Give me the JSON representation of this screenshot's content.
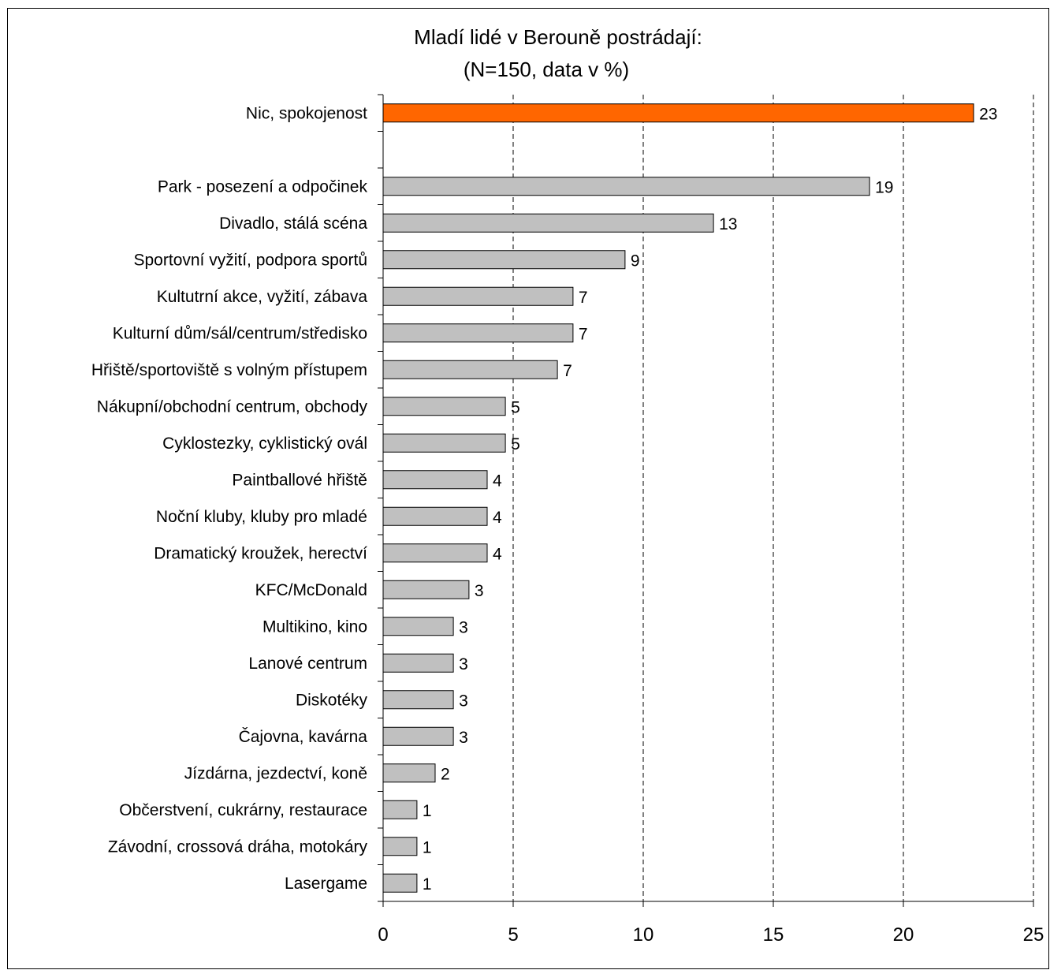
{
  "chart_data": {
    "type": "bar",
    "orientation": "horizontal",
    "title": "Mladí lidé v Berouně postrádají:",
    "subtitle": "(N=150, data v %)",
    "categories": [
      "Nic, spokojenost",
      "",
      "Park - posezení a odpočinek",
      "Divadlo, stálá scéna",
      "Sportovní vyžití, podpora sportů",
      "Kultutrní akce, vyžití, zábava",
      "Kulturní dům/sál/centrum/středisko",
      "Hřiště/sportoviště s volným přístupem",
      "Nákupní/obchodní centrum, obchody",
      "Cyklostezky, cyklistický ovál",
      "Paintballové hřiště",
      "Noční kluby, kluby pro mladé",
      "Dramatický kroužek, herectví",
      "KFC/McDonald",
      "Multikino, kino",
      "Lanové centrum",
      "Diskotéky",
      "Čajovna, kavárna",
      "Jízdárna, jezdectví, koně",
      "Občerstvení, cukrárny, restaurace",
      "Závodní, crossová dráha, motokáry",
      "Lasergame"
    ],
    "values": [
      22.7,
      null,
      18.7,
      12.7,
      9.3,
      7.3,
      7.3,
      6.7,
      4.7,
      4.7,
      4.0,
      4.0,
      4.0,
      3.3,
      2.7,
      2.7,
      2.7,
      2.7,
      2.0,
      1.3,
      1.3,
      1.3
    ],
    "value_labels": [
      "23",
      "",
      "19",
      "13",
      "9",
      "7",
      "7",
      "7",
      "5",
      "5",
      "4",
      "4",
      "4",
      "3",
      "3",
      "3",
      "3",
      "3",
      "2",
      "1",
      "1",
      "1"
    ],
    "xlim": [
      0,
      25
    ],
    "xticks": [
      "0",
      "5",
      "10",
      "15",
      "20",
      "25"
    ],
    "grid": "vertical dashed",
    "legend": "none",
    "colors": {
      "highlight": "#ff6600",
      "default": "#c0c0c0",
      "border": "#000000",
      "grid": "#000000"
    }
  }
}
